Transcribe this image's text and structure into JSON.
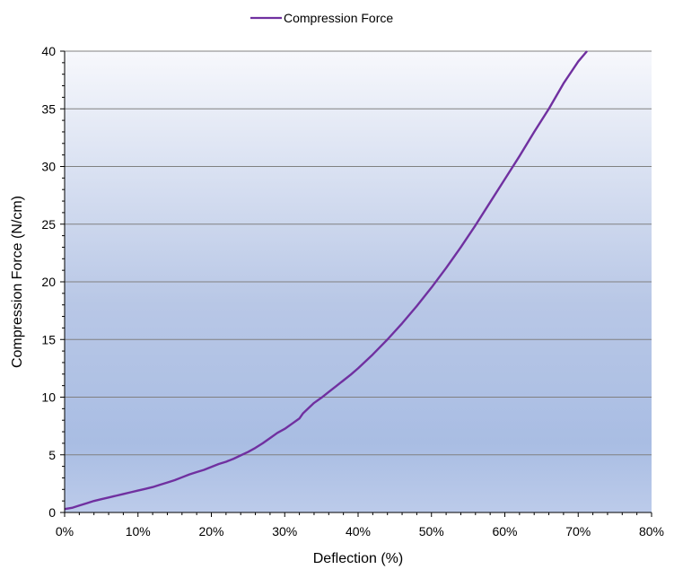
{
  "chart_data": {
    "type": "line",
    "title": "",
    "xlabel": "Deflection (%)",
    "ylabel": "Compression Force (N/cm)",
    "xlim": [
      0,
      80
    ],
    "ylim": [
      0,
      40
    ],
    "x_ticks": [
      0,
      10,
      20,
      30,
      40,
      50,
      60,
      70,
      80
    ],
    "x_tick_labels": [
      "0%",
      "10%",
      "20%",
      "30%",
      "40%",
      "50%",
      "60%",
      "70%",
      "80%"
    ],
    "y_ticks": [
      0,
      5,
      10,
      15,
      20,
      25,
      30,
      35,
      40
    ],
    "y_tick_labels": [
      "0",
      "5",
      "10",
      "15",
      "20",
      "25",
      "30",
      "35",
      "40"
    ],
    "grid": "horizontal major gridlines",
    "legend_position": "top-center",
    "series": [
      {
        "name": "Compression Force",
        "color": "#7030A0",
        "x": [
          0,
          1,
          2,
          3,
          4,
          5,
          6,
          7,
          8,
          9,
          10,
          11,
          12,
          13,
          14,
          15,
          16,
          17,
          18,
          19,
          20,
          21,
          22,
          23,
          24,
          25,
          26,
          27,
          28,
          29,
          30,
          31,
          32,
          32.5,
          33,
          34,
          35,
          36,
          37,
          38,
          39,
          40,
          42,
          44,
          46,
          48,
          50,
          52,
          54,
          56,
          58,
          60,
          62,
          64,
          66,
          68,
          70,
          71.2
        ],
        "y": [
          0.3,
          0.4,
          0.6,
          0.8,
          1.0,
          1.15,
          1.3,
          1.45,
          1.6,
          1.75,
          1.9,
          2.05,
          2.2,
          2.4,
          2.6,
          2.8,
          3.05,
          3.3,
          3.5,
          3.7,
          3.95,
          4.2,
          4.4,
          4.65,
          4.95,
          5.25,
          5.6,
          6.0,
          6.45,
          6.9,
          7.25,
          7.7,
          8.15,
          8.6,
          8.9,
          9.5,
          9.95,
          10.45,
          10.95,
          11.45,
          11.95,
          12.5,
          13.7,
          15.0,
          16.4,
          17.9,
          19.5,
          21.2,
          23.0,
          24.9,
          26.9,
          28.9,
          30.9,
          33.0,
          35.0,
          37.2,
          39.1,
          40.2
        ]
      }
    ]
  }
}
